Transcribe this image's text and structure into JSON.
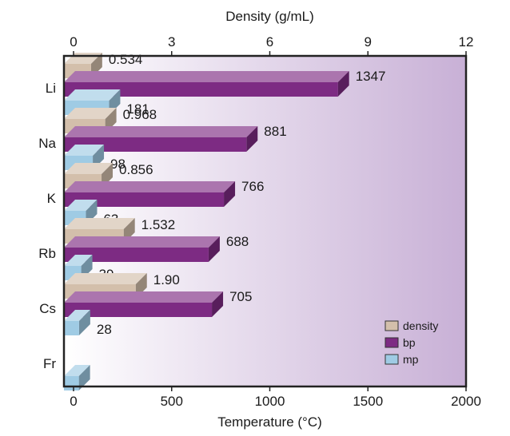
{
  "chart_data": {
    "type": "bar",
    "orientation": "horizontal",
    "categories": [
      "Li",
      "Na",
      "K",
      "Rb",
      "Cs",
      "Fr"
    ],
    "series": [
      {
        "name": "density",
        "axis": "top",
        "values": [
          0.534,
          0.968,
          0.856,
          1.532,
          1.9,
          null
        ],
        "labels": [
          "0.534",
          "0.968",
          "0.856",
          "1.532",
          "1.90",
          ""
        ]
      },
      {
        "name": "bp",
        "axis": "bottom",
        "values": [
          1347,
          881,
          766,
          688,
          705,
          null
        ],
        "labels": [
          "1347",
          "881",
          "766",
          "688",
          "705",
          ""
        ]
      },
      {
        "name": "mp",
        "axis": "bottom",
        "values": [
          181,
          98,
          63,
          39,
          28,
          27
        ],
        "labels": [
          "181",
          "98",
          "63",
          "39",
          "28",
          ""
        ]
      }
    ],
    "top_axis": {
      "label": "Density (g/mL)",
      "range": [
        0,
        12
      ],
      "ticks": [
        "0",
        "3",
        "6",
        "9",
        "12"
      ]
    },
    "bottom_axis": {
      "label": "Temperature (°C)",
      "range": [
        0,
        2000
      ],
      "ticks": [
        "0",
        "500",
        "1000",
        "1500",
        "2000"
      ]
    },
    "legend_position": "bottom-right",
    "colors": {
      "density": "#d3bfab",
      "bp": "#7d2b83",
      "mp": "#9fcbe4",
      "background_start": "#ffffff",
      "background_end": "#c8b0d6"
    }
  }
}
